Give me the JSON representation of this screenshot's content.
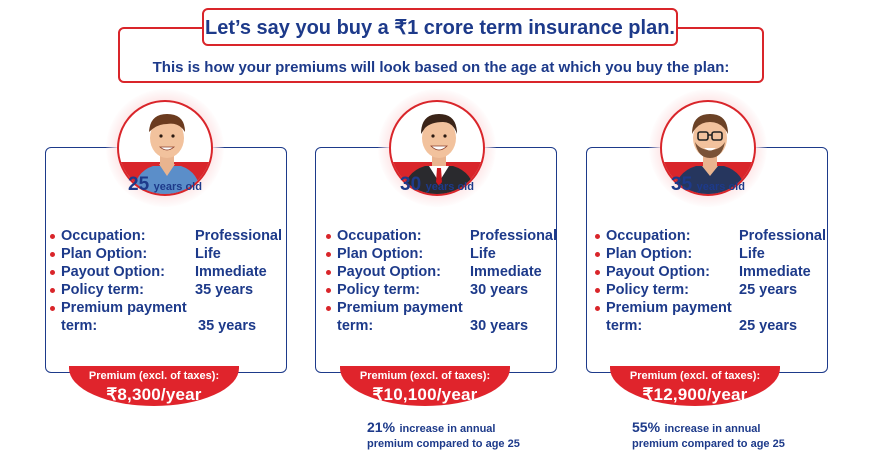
{
  "header": {
    "headline": "Let’s say you buy a ₹1 crore term insurance plan.",
    "subline": "This is how your premiums will look based on the age at which you buy the plan:"
  },
  "colors": {
    "accent_red": "#d9252a",
    "navy": "#1d3a8a"
  },
  "labels": {
    "occupation": "Occupation:",
    "plan_option": "Plan Option:",
    "payout_option": "Payout Option:",
    "policy_term": "Policy term:",
    "premium_payment_1": "Premium payment",
    "premium_payment_2": "term:",
    "premium_caption": "Premium (excl. of taxes):"
  },
  "plans": [
    {
      "age_number": "25",
      "age_suffix": "years old",
      "avatar": "man-casual-shirt-icon",
      "occupation": "Professional",
      "plan_option": "Life",
      "payout_option": "Immediate",
      "policy_term": "35 years",
      "premium_payment_term": "35 years",
      "premium": "₹8,300/year"
    },
    {
      "age_number": "30",
      "age_suffix": "years old",
      "avatar": "man-suit-tie-icon",
      "occupation": "Professional",
      "plan_option": "Life",
      "payout_option": "Immediate",
      "policy_term": "30 years",
      "premium_payment_term": "30 years",
      "premium": "₹10,100/year",
      "increase_pct": "21%",
      "increase_text_1": "increase in annual",
      "increase_text_2": "premium compared to age 25"
    },
    {
      "age_number": "35",
      "age_suffix": "years old",
      "avatar": "man-glasses-sweater-icon",
      "occupation": "Professional",
      "plan_option": "Life",
      "payout_option": "Immediate",
      "policy_term": "25 years",
      "premium_payment_term": "25 years",
      "premium": "₹12,900/year",
      "increase_pct": "55%",
      "increase_text_1": "increase in annual",
      "increase_text_2": "premium compared to age 25"
    }
  ]
}
